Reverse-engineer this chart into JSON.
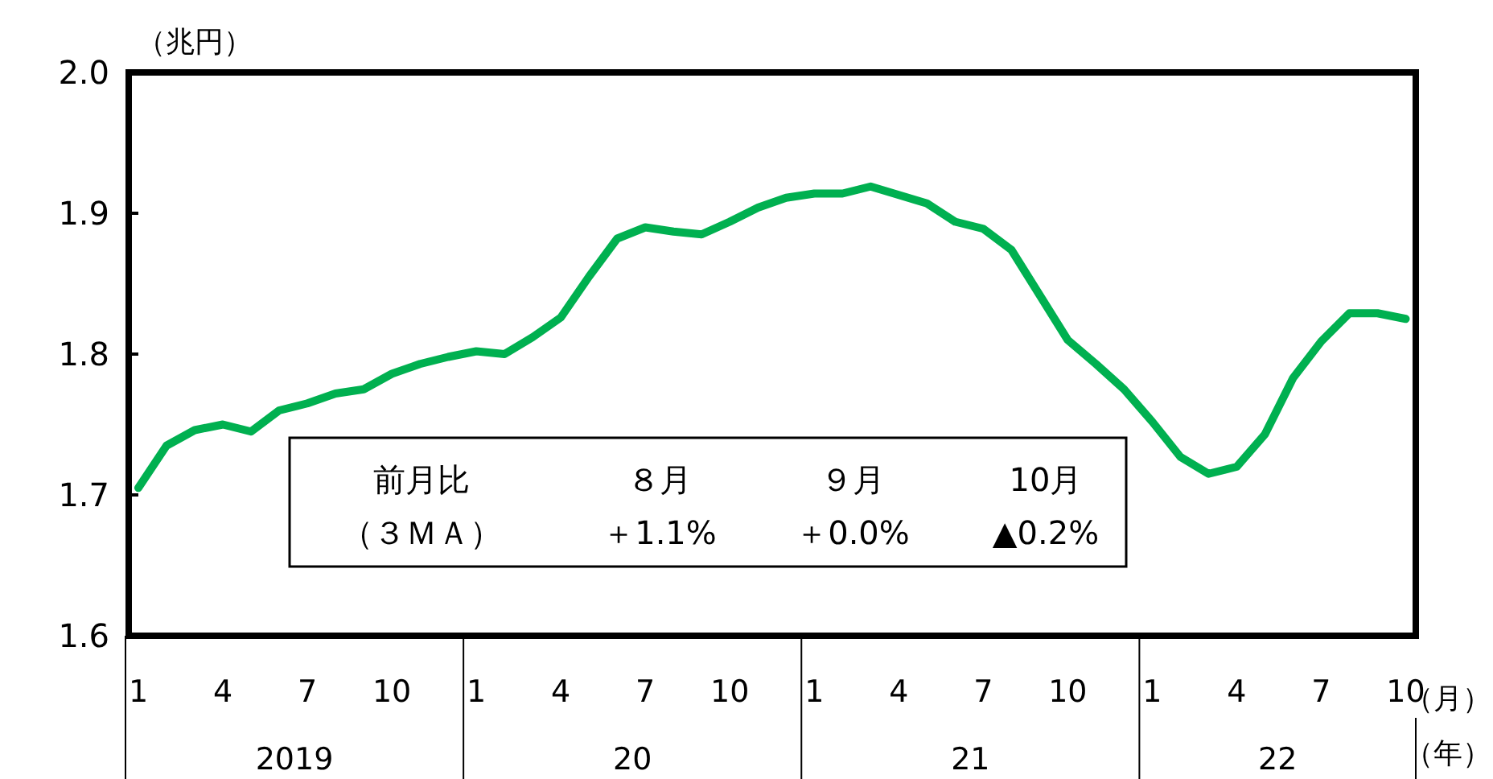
{
  "chart_data": {
    "type": "line",
    "ylabel": "（兆円）",
    "categories": [
      "1",
      null,
      null,
      "4",
      null,
      null,
      "7",
      null,
      null,
      "10",
      null,
      null,
      "1",
      null,
      null,
      "4",
      null,
      null,
      "7",
      null,
      null,
      "10",
      null,
      null,
      "1",
      null,
      null,
      "4",
      null,
      null,
      "7",
      null,
      null,
      "10",
      null,
      null,
      "1",
      null,
      null,
      "4",
      null,
      null,
      "7",
      null,
      null,
      "10"
    ],
    "series": [
      {
        "color": "#00b050",
        "values": [
          1.705,
          1.735,
          1.746,
          1.75,
          1.745,
          1.76,
          1.765,
          1.772,
          1.775,
          1.786,
          1.793,
          1.798,
          1.802,
          1.8,
          1.812,
          1.826,
          1.855,
          1.882,
          1.89,
          1.887,
          1.885,
          1.894,
          1.904,
          1.911,
          1.914,
          1.914,
          1.919,
          1.913,
          1.907,
          1.894,
          1.889,
          1.874,
          1.842,
          1.81,
          1.793,
          1.775,
          1.752,
          1.727,
          1.715,
          1.72,
          1.743,
          1.783,
          1.809,
          1.829,
          1.829,
          1.825
        ]
      }
    ],
    "ylim": [
      1.6,
      2.0
    ],
    "yticks": [
      {
        "value": 1.6,
        "label": "1.6"
      },
      {
        "value": 1.7,
        "label": "1.7"
      },
      {
        "value": 1.8,
        "label": "1.8"
      },
      {
        "value": 1.9,
        "label": "1.9"
      },
      {
        "value": 2.0,
        "label": "2.0"
      }
    ],
    "grid": false,
    "line_style": "solid",
    "annotations": [
      "2019",
      "20",
      "21",
      "22",
      "（月）",
      "（年）",
      "前月比",
      "（３ＭＡ）",
      "８月",
      "＋1.1%",
      "９月",
      "＋0.0%",
      "10月",
      "▲0.2%"
    ]
  }
}
